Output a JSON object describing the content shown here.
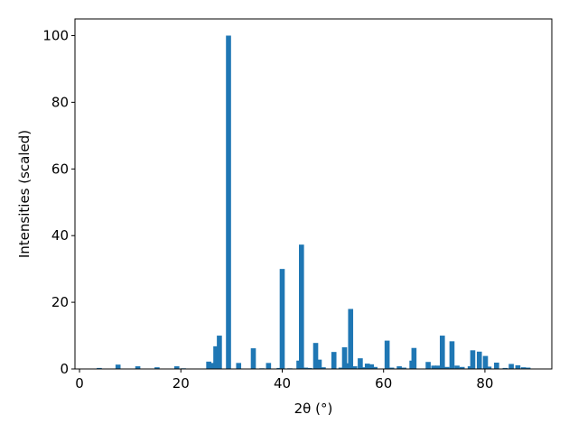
{
  "chart_data": {
    "type": "bar",
    "x_label": "2θ (°)",
    "y_label": "Intensities (scaled)",
    "color": "#1f77b4",
    "x": [
      3.9,
      7.6,
      11.5,
      15.3,
      19.2,
      20.5,
      25.5,
      26.2,
      26.9,
      27.6,
      29.4,
      31.4,
      34.3,
      36.0,
      37.3,
      39.4,
      40.0,
      41.5,
      43.3,
      43.8,
      44.6,
      45.4,
      46.6,
      47.3,
      48.1,
      50.2,
      51.6,
      52.3,
      52.6,
      53.5,
      54.3,
      55.4,
      56.2,
      56.8,
      57.6,
      58.3,
      60.7,
      61.6,
      63.1,
      64.0,
      65.6,
      66.0,
      68.8,
      69.9,
      70.7,
      71.6,
      72.5,
      73.5,
      74.5,
      75.5,
      77.1,
      77.6,
      78.9,
      80.1,
      80.8,
      82.3,
      84.0,
      85.2,
      86.5,
      87.6,
      88.5
    ],
    "values": [
      0.3,
      1.3,
      0.8,
      0.5,
      0.8,
      0.2,
      2.2,
      1.8,
      6.8,
      10,
      100,
      1.8,
      6.2,
      0.2,
      1.8,
      0.3,
      30,
      0.2,
      2.5,
      37.3,
      0.4,
      0.3,
      7.8,
      2.8,
      0.5,
      5.1,
      0.4,
      6.5,
      1.7,
      18,
      0.8,
      3.2,
      0.5,
      1.6,
      1.4,
      0.6,
      8.5,
      0.4,
      0.8,
      0.4,
      2.5,
      6.3,
      2.1,
      1.0,
      1.0,
      10,
      0.6,
      8.3,
      1.0,
      0.6,
      0.8,
      5.6,
      5.2,
      3.9,
      0.7,
      1.9,
      0.3,
      1.5,
      1.1,
      0.5,
      0.4
    ],
    "xlim": [
      -0.9,
      93.2
    ],
    "ylim": [
      0,
      105
    ],
    "xticks": [
      0,
      20,
      40,
      60,
      80
    ],
    "yticks": [
      0,
      20,
      40,
      60,
      80,
      100
    ]
  }
}
